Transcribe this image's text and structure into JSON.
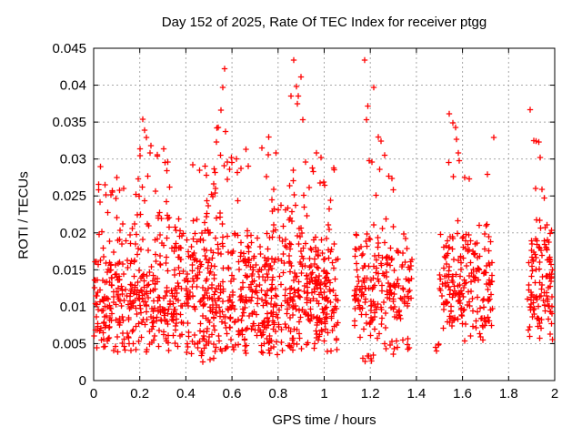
{
  "chart_data": {
    "type": "scatter",
    "title": "Day 152 of 2025, Rate Of TEC Index for receiver ptgg",
    "xlabel": "GPS time / hours",
    "ylabel": "ROTI / TECUs",
    "xlim": [
      0,
      2
    ],
    "ylim": [
      0,
      0.045
    ],
    "xtick_values": [
      0,
      0.2,
      0.4,
      0.6,
      0.8,
      1,
      1.2,
      1.4,
      1.6,
      1.8,
      2
    ],
    "xtick_labels": [
      "0",
      "0.2",
      "0.4",
      "0.6",
      "0.8",
      "1",
      "1.2",
      "1.4",
      "1.6",
      "1.8",
      "2"
    ],
    "ytick_values": [
      0,
      0.005,
      0.01,
      0.015,
      0.02,
      0.025,
      0.03,
      0.035,
      0.04,
      0.045
    ],
    "ytick_labels": [
      "0",
      "0.005",
      "0.01",
      "0.015",
      "0.02",
      "0.025",
      "0.03",
      "0.035",
      "0.04",
      "0.045"
    ],
    "grid": true,
    "legend": "none",
    "marker": {
      "shape": "plus",
      "size": 7,
      "color": "#ff0000"
    },
    "colors": {
      "marker": "#ff0000",
      "grid": "#a8a8a8",
      "axis": "#000000",
      "background": "#ffffff",
      "text": "#000000"
    },
    "seed": 20250601,
    "description": "Dense scatter of ROTI values vs GPS time; continuous dense band 0-1.06 h, data gaps at 1.06-1.13, 1.39-1.50, 1.74-1.87 h, separated clusters at 1.13-1.38, 1.50-1.73, 1.88-1.99 h; spikes up to 0.044 TECUs near 0.57, 0.87 and 1.18 h",
    "clusters": [
      {
        "name": "main-band",
        "x0": 0.0,
        "x1": 1.06,
        "count": 1050,
        "yMin": 0.0035,
        "yMax": 0.0235,
        "dist": "band",
        "skew": 1.3
      },
      {
        "name": "fringe-left",
        "x0": 0.0,
        "x1": 0.17,
        "count": 10,
        "yMin": 0.022,
        "yMax": 0.027,
        "dist": "uniform"
      },
      {
        "name": "fringe-02",
        "x0": 0.18,
        "x1": 0.33,
        "count": 16,
        "yMin": 0.022,
        "yMax": 0.0305,
        "dist": "uniform"
      },
      {
        "name": "fringe-06",
        "x0": 0.48,
        "x1": 0.71,
        "count": 22,
        "yMin": 0.022,
        "yMax": 0.0305,
        "dist": "uniform"
      },
      {
        "name": "fringe-08",
        "x0": 0.72,
        "x1": 1.05,
        "count": 24,
        "yMin": 0.022,
        "yMax": 0.029,
        "dist": "uniform"
      },
      {
        "name": "low-tail-main",
        "x0": 0.02,
        "x1": 1.05,
        "count": 16,
        "yMin": 0.004,
        "yMax": 0.0052,
        "dist": "uniform"
      },
      {
        "name": "low-tail-mid",
        "x0": 0.4,
        "x1": 0.68,
        "count": 12,
        "yMin": 0.0024,
        "yMax": 0.0048,
        "dist": "uniform"
      },
      {
        "name": "cluster-1_2h",
        "x0": 1.13,
        "x1": 1.38,
        "count": 200,
        "yMin": 0.005,
        "yMax": 0.0225,
        "dist": "band",
        "skew": 1.2
      },
      {
        "name": "cluster-1_2h-low-streak",
        "x0": 1.16,
        "x1": 1.22,
        "count": 7,
        "yMin": 0.0026,
        "yMax": 0.0036,
        "dist": "uniform"
      },
      {
        "name": "cluster-1_2h-low-trail",
        "x0": 1.26,
        "x1": 1.37,
        "count": 9,
        "yMin": 0.0035,
        "yMax": 0.005,
        "dist": "uniform"
      },
      {
        "name": "gap-edge",
        "x0": 1.46,
        "x1": 1.5,
        "count": 4,
        "yMin": 0.0035,
        "yMax": 0.006,
        "dist": "uniform"
      },
      {
        "name": "cluster-1_6h",
        "x0": 1.5,
        "x1": 1.73,
        "count": 200,
        "yMin": 0.005,
        "yMax": 0.023,
        "dist": "band",
        "skew": 1.15
      },
      {
        "name": "cluster-1_9h",
        "x0": 1.88,
        "x1": 1.99,
        "count": 115,
        "yMin": 0.0045,
        "yMax": 0.0225,
        "dist": "band",
        "skew": 1.15
      }
    ],
    "outliers": [
      [
        0.03,
        0.029
      ],
      [
        0.05,
        0.0265
      ],
      [
        0.08,
        0.0255
      ],
      [
        0.1,
        0.0275
      ],
      [
        0.13,
        0.026
      ],
      [
        0.201,
        0.0314
      ],
      [
        0.213,
        0.0354
      ],
      [
        0.221,
        0.0339
      ],
      [
        0.229,
        0.0329
      ],
      [
        0.249,
        0.0318
      ],
      [
        0.245,
        0.0308
      ],
      [
        0.276,
        0.0306
      ],
      [
        0.304,
        0.0314
      ],
      [
        0.31,
        0.0295
      ],
      [
        0.33,
        0.0262
      ],
      [
        0.43,
        0.0292
      ],
      [
        0.46,
        0.0285
      ],
      [
        0.533,
        0.0323
      ],
      [
        0.535,
        0.0342
      ],
      [
        0.54,
        0.0343
      ],
      [
        0.552,
        0.0366
      ],
      [
        0.56,
        0.0397
      ],
      [
        0.568,
        0.0422
      ],
      [
        0.572,
        0.0337
      ],
      [
        0.55,
        0.0305
      ],
      [
        0.58,
        0.0296
      ],
      [
        0.6,
        0.0295
      ],
      [
        0.62,
        0.03
      ],
      [
        0.64,
        0.0287
      ],
      [
        0.66,
        0.0313
      ],
      [
        0.73,
        0.0315
      ],
      [
        0.757,
        0.0306
      ],
      [
        0.76,
        0.033
      ],
      [
        0.79,
        0.0308
      ],
      [
        0.856,
        0.0385
      ],
      [
        0.868,
        0.0434
      ],
      [
        0.88,
        0.0398
      ],
      [
        0.884,
        0.0375
      ],
      [
        0.888,
        0.0385
      ],
      [
        0.899,
        0.0411
      ],
      [
        0.907,
        0.0353
      ],
      [
        0.92,
        0.0296
      ],
      [
        0.966,
        0.0308
      ],
      [
        0.986,
        0.0302
      ],
      [
        0.998,
        0.0269
      ],
      [
        1.176,
        0.0434
      ],
      [
        1.184,
        0.0353
      ],
      [
        1.19,
        0.0372
      ],
      [
        1.195,
        0.0298
      ],
      [
        1.207,
        0.0296
      ],
      [
        1.215,
        0.0397
      ],
      [
        1.225,
        0.0251
      ],
      [
        1.234,
        0.033
      ],
      [
        1.24,
        0.0286
      ],
      [
        1.246,
        0.0324
      ],
      [
        1.262,
        0.0305
      ],
      [
        1.28,
        0.0277
      ],
      [
        1.294,
        0.0274
      ],
      [
        1.3,
        0.0258
      ],
      [
        1.54,
        0.0295
      ],
      [
        1.543,
        0.0361
      ],
      [
        1.558,
        0.0349
      ],
      [
        1.57,
        0.0343
      ],
      [
        1.574,
        0.0327
      ],
      [
        1.582,
        0.0308
      ],
      [
        1.585,
        0.0298
      ],
      [
        1.56,
        0.0276
      ],
      [
        1.61,
        0.0275
      ],
      [
        1.63,
        0.0273
      ],
      [
        1.708,
        0.0279
      ],
      [
        1.735,
        0.0329
      ],
      [
        1.893,
        0.0367
      ],
      [
        1.91,
        0.0325
      ],
      [
        1.92,
        0.0324
      ],
      [
        1.93,
        0.0323
      ],
      [
        1.937,
        0.0302
      ],
      [
        1.917,
        0.026
      ],
      [
        1.945,
        0.0259
      ],
      [
        1.955,
        0.0247
      ]
    ]
  }
}
